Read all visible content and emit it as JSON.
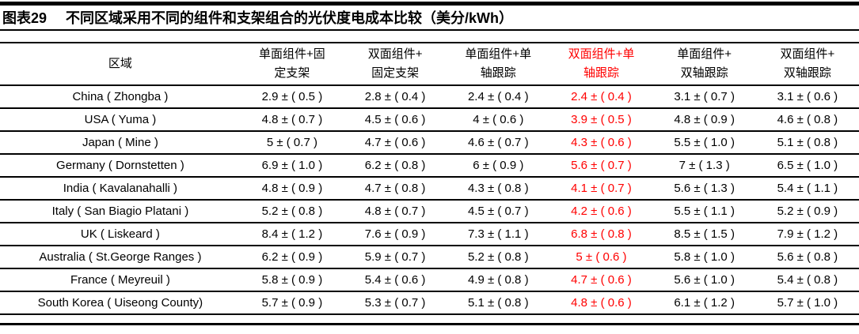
{
  "figure": {
    "label": "图表29",
    "title": "不同区域采用不同的组件和支架组合的光伏度电成本比较（美分/kWh）"
  },
  "colors": {
    "highlight_red": "#ff0000",
    "text_black": "#000000",
    "rule_black": "#000000"
  },
  "table": {
    "region_header": "区域",
    "column_headers": [
      {
        "line1": "单面组件+固",
        "line2": "定支架",
        "highlight": false
      },
      {
        "line1": "双面组件+",
        "line2": "固定支架",
        "highlight": false
      },
      {
        "line1": "单面组件+单",
        "line2": "轴跟踪",
        "highlight": false
      },
      {
        "line1": "双面组件+单",
        "line2": "轴跟踪",
        "highlight": true
      },
      {
        "line1": "单面组件+",
        "line2": "双轴跟踪",
        "highlight": false
      },
      {
        "line1": "双面组件+",
        "line2": "双轴跟踪",
        "highlight": false
      }
    ],
    "highlight_column_index": 3,
    "rows": [
      {
        "region": "China ( Zhongba )",
        "values": [
          "2.9 ± ( 0.5 )",
          "2.8 ± ( 0.4 )",
          "2.4 ± ( 0.4 )",
          "2.4 ± ( 0.4 )",
          "3.1 ± ( 0.7 )",
          "3.1 ± ( 0.6 )"
        ]
      },
      {
        "region": "USA ( Yuma )",
        "values": [
          "4.8 ± ( 0.7 )",
          "4.5 ± ( 0.6 )",
          "4 ± ( 0.6 )",
          "3.9 ± ( 0.5 )",
          "4.8 ± ( 0.9 )",
          "4.6 ± ( 0.8 )"
        ]
      },
      {
        "region": "Japan ( Mine )",
        "values": [
          "5 ± ( 0.7 )",
          "4.7 ± ( 0.6 )",
          "4.6 ± ( 0.7 )",
          "4.3 ± ( 0.6 )",
          "5.5 ± ( 1.0 )",
          "5.1 ± ( 0.8 )"
        ]
      },
      {
        "region": "Germany ( Dornstetten )",
        "values": [
          "6.9 ± ( 1.0 )",
          "6.2 ± ( 0.8 )",
          "6 ± ( 0.9 )",
          "5.6 ± ( 0.7 )",
          "7 ± ( 1.3 )",
          "6.5 ± ( 1.0 )"
        ]
      },
      {
        "region": "India ( Kavalanahalli )",
        "values": [
          "4.8 ± ( 0.9 )",
          "4.7 ± ( 0.8 )",
          "4.3 ± ( 0.8 )",
          "4.1 ± ( 0.7 )",
          "5.6 ± ( 1.3 )",
          "5.4 ± ( 1.1 )"
        ]
      },
      {
        "region": "Italy ( San Biagio Platani )",
        "values": [
          "5.2 ± ( 0.8 )",
          "4.8 ± ( 0.7 )",
          "4.5 ± ( 0.7 )",
          "4.2 ± ( 0.6 )",
          "5.5 ± ( 1.1 )",
          "5.2 ± ( 0.9 )"
        ]
      },
      {
        "region": "UK ( Liskeard )",
        "values": [
          "8.4 ± ( 1.2 )",
          "7.6 ± ( 0.9 )",
          "7.3 ± ( 1.1 )",
          "6.8 ± ( 0.8 )",
          "8.5 ± ( 1.5 )",
          "7.9 ± ( 1.2 )"
        ]
      },
      {
        "region": "Australia ( St.George Ranges )",
        "values": [
          "6.2 ± ( 0.9 )",
          "5.9 ± ( 0.7 )",
          "5.2 ± ( 0.8 )",
          "5 ± ( 0.6 )",
          "5.8 ± ( 1.0 )",
          "5.6 ± ( 0.8 )"
        ]
      },
      {
        "region": "France ( Meyreuil )",
        "values": [
          "5.8 ± ( 0.9 )",
          "5.4 ± ( 0.6 )",
          "4.9 ± ( 0.8 )",
          "4.7 ± ( 0.6 )",
          "5.6 ± ( 1.0 )",
          "5.4 ± ( 0.8 )"
        ]
      },
      {
        "region": "South Korea ( Uiseong County)",
        "values": [
          "5.7 ± ( 0.9 )",
          "5.3 ± ( 0.7 )",
          "5.1 ± ( 0.8 )",
          "4.8 ± ( 0.6 )",
          "6.1 ± ( 1.2 )",
          "5.7 ± ( 1.0 )"
        ]
      }
    ]
  }
}
